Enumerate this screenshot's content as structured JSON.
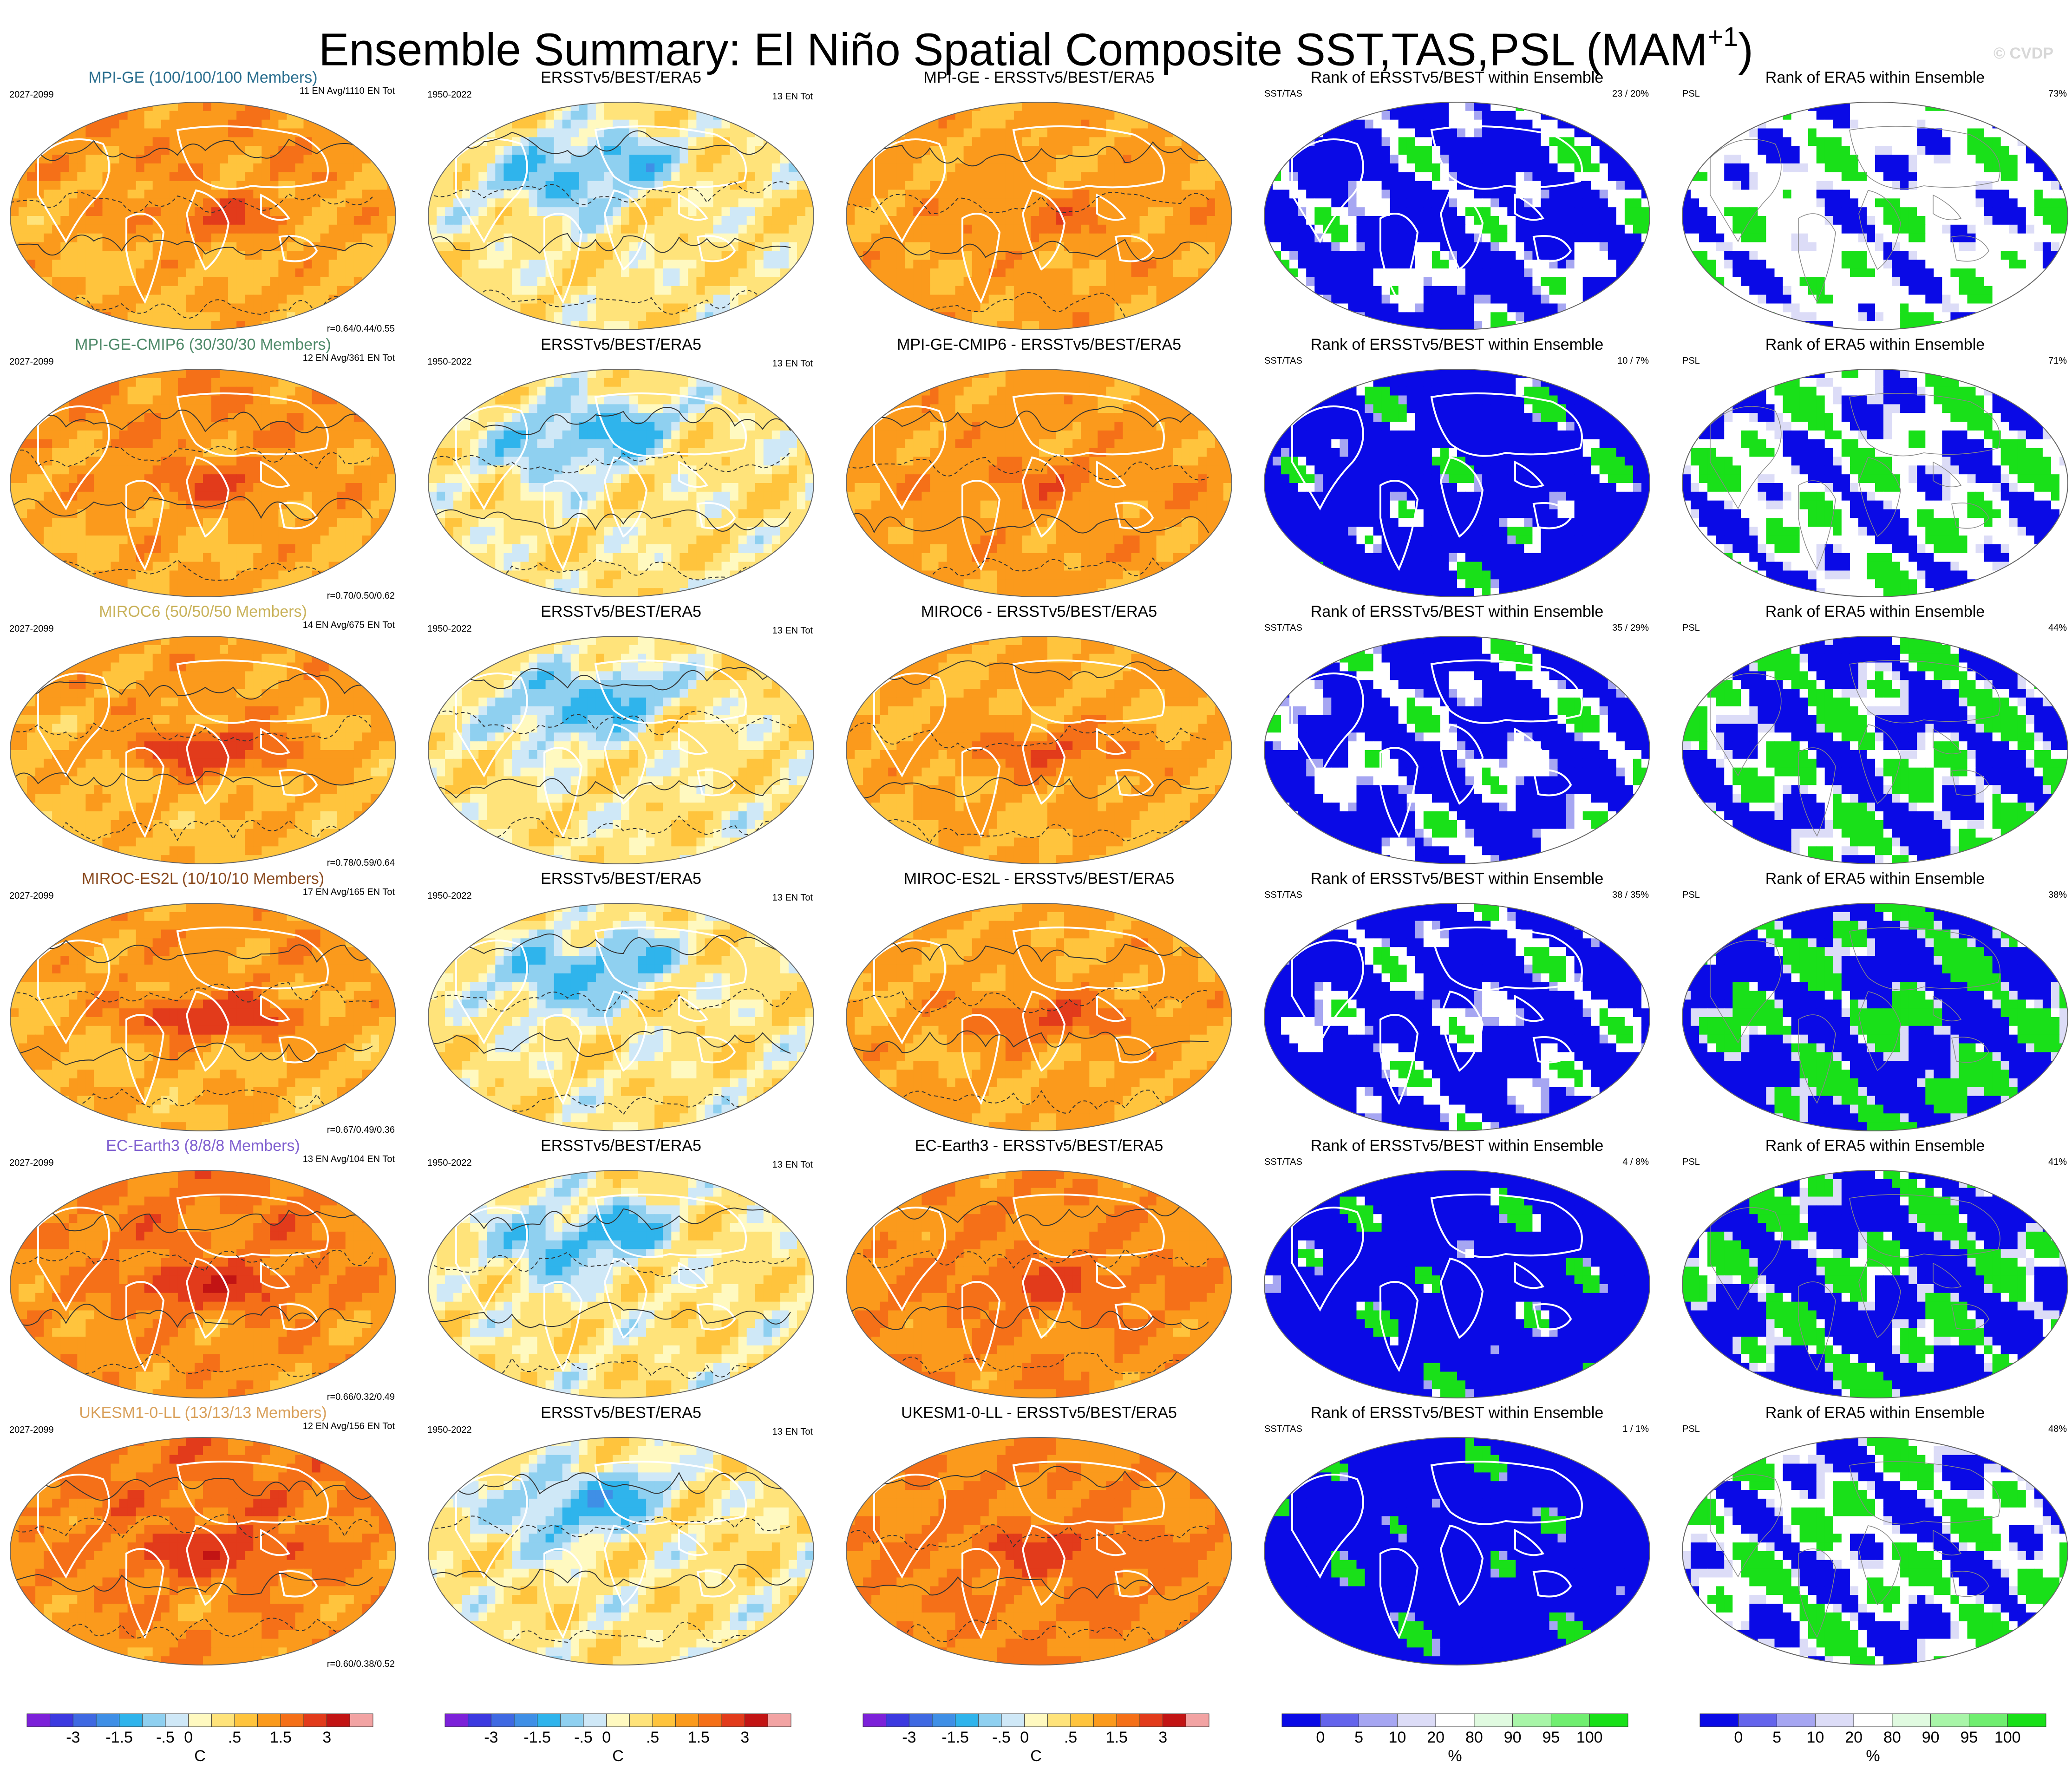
{
  "figure": {
    "title_main": "Ensemble Summary: El Niño Spatial Composite SST,TAS,PSL (MAM",
    "title_sup": "+1",
    "title_close": ")",
    "watermark": "© CVDP"
  },
  "colors": {
    "temp_scale": [
      "#7c21d9",
      "#3c39e0",
      "#3f69e2",
      "#3f8fe6",
      "#2fb4ec",
      "#8fd0f0",
      "#cfe8f7",
      "#fff9c0",
      "#ffe37a",
      "#ffc43d",
      "#fb9a1c",
      "#f57018",
      "#e23b1b",
      "#c21414",
      "#f2a3a3"
    ],
    "rank_scale": [
      "#0a0ae6",
      "#6464ec",
      "#a6a6f2",
      "#dcdcf7",
      "#ffffff",
      "#e0fae0",
      "#a8f5a8",
      "#70ee70",
      "#19e019"
    ],
    "land_outline": "#ffffff",
    "contour": "#333333"
  },
  "rows": [
    {
      "model": "MPI-GE (100/100/100 Members)",
      "model_color": "#2b6f8f",
      "period": "2027-2099",
      "ens_note": "11 EN Avg/1110 EN Tot",
      "corr": "r=0.64/0.44/0.55",
      "obs_title": "ERSSTv5/BEST/ERA5",
      "obs_period": "1950-2022",
      "obs_note": "13 EN Tot",
      "diff_title": "MPI-GE - ERSSTv5/BEST/ERA5",
      "rank1_title": "Rank of ERSSTv5/BEST within Ensemble",
      "rank1_var": "SST/TAS",
      "rank1_stat": "23 /  20%",
      "rank2_title": "Rank of ERA5 within Ensemble",
      "rank2_var": "PSL",
      "rank2_stat": "73%",
      "warm": 0.62,
      "enso": 0.45,
      "rank1_blue": 0.62,
      "rank2_blue": 0.2,
      "rank2_green": 0.15
    },
    {
      "model": "MPI-GE-CMIP6 (30/30/30 Members)",
      "model_color": "#4f8a6a",
      "period": "2027-2099",
      "ens_note": "12 EN Avg/361 EN Tot",
      "corr": "r=0.70/0.50/0.62",
      "obs_title": "ERSSTv5/BEST/ERA5",
      "obs_period": "1950-2022",
      "obs_note": "13 EN Tot",
      "diff_title": "MPI-GE-CMIP6 - ERSSTv5/BEST/ERA5",
      "rank1_title": "Rank of ERSSTv5/BEST within Ensemble",
      "rank1_var": "SST/TAS",
      "rank1_stat": "10 /   7%",
      "rank2_title": "Rank of ERA5 within Ensemble",
      "rank2_var": "PSL",
      "rank2_stat": "71%",
      "warm": 0.66,
      "enso": 0.45,
      "rank1_blue": 0.82,
      "rank2_blue": 0.3,
      "rank2_green": 0.25
    },
    {
      "model": "MIROC6 (50/50/50 Members)",
      "model_color": "#c9b25a",
      "period": "2027-2099",
      "ens_note": "14 EN Avg/675 EN Tot",
      "corr": "r=0.78/0.59/0.64",
      "obs_title": "ERSSTv5/BEST/ERA5",
      "obs_period": "1950-2022",
      "obs_note": "13 EN Tot",
      "diff_title": "MIROC6 - ERSSTv5/BEST/ERA5",
      "rank1_title": "Rank of ERSSTv5/BEST within Ensemble",
      "rank1_var": "SST/TAS",
      "rank1_stat": "35 /  29%",
      "rank2_title": "Rank of ERA5 within Ensemble",
      "rank2_var": "PSL",
      "rank2_stat": "44%",
      "warm": 0.55,
      "enso": 0.75,
      "rank1_blue": 0.6,
      "rank2_blue": 0.45,
      "rank2_green": 0.3
    },
    {
      "model": "MIROC-ES2L (10/10/10 Members)",
      "model_color": "#8a4a1f",
      "period": "2027-2099",
      "ens_note": "17 EN Avg/165 EN Tot",
      "corr": "r=0.67/0.49/0.36",
      "obs_title": "ERSSTv5/BEST/ERA5",
      "obs_period": "1950-2022",
      "obs_note": "13 EN Tot",
      "diff_title": "MIROC-ES2L - ERSSTv5/BEST/ERA5",
      "rank1_title": "Rank of ERSSTv5/BEST within Ensemble",
      "rank1_var": "SST/TAS",
      "rank1_stat": "38 /  35%",
      "rank2_title": "Rank of ERA5 within Ensemble",
      "rank2_var": "PSL",
      "rank2_stat": "38%",
      "warm": 0.58,
      "enso": 0.8,
      "rank1_blue": 0.65,
      "rank2_blue": 0.55,
      "rank2_green": 0.35
    },
    {
      "model": "EC-Earth3 (8/8/8 Members)",
      "model_color": "#8060d0",
      "period": "2027-2099",
      "ens_note": "13 EN Avg/104 EN Tot",
      "corr": "r=0.66/0.32/0.49",
      "obs_title": "ERSSTv5/BEST/ERA5",
      "obs_period": "1950-2022",
      "obs_note": "13 EN Tot",
      "diff_title": "EC-Earth3 - ERSSTv5/BEST/ERA5",
      "rank1_title": "Rank of ERSSTv5/BEST within Ensemble",
      "rank1_var": "SST/TAS",
      "rank1_stat": "4 /   8%",
      "rank2_title": "Rank of ERA5 within Ensemble",
      "rank2_var": "PSL",
      "rank2_stat": "41%",
      "warm": 0.8,
      "enso": 0.65,
      "rank1_blue": 0.88,
      "rank2_blue": 0.55,
      "rank2_green": 0.3
    },
    {
      "model": "UKESM1-0-LL (13/13/13 Members)",
      "model_color": "#d9a05b",
      "period": "2027-2099",
      "ens_note": "12 EN Avg/156 EN Tot",
      "corr": "r=0.60/0.38/0.52",
      "obs_title": "ERSSTv5/BEST/ERA5",
      "obs_period": "1950-2022",
      "obs_note": "13 EN Tot",
      "diff_title": "UKESM1-0-LL - ERSSTv5/BEST/ERA5",
      "rank1_title": "Rank of ERSSTv5/BEST within Ensemble",
      "rank1_var": "SST/TAS",
      "rank1_stat": "1 /   1%",
      "rank2_title": "Rank of ERA5 within Ensemble",
      "rank2_var": "PSL",
      "rank2_stat": "48%",
      "warm": 0.85,
      "enso": 0.6,
      "rank1_blue": 0.95,
      "rank2_blue": 0.35,
      "rank2_green": 0.3
    }
  ],
  "colorbars": {
    "temp": {
      "ticks": [
        "-3",
        "-1.5",
        "-.5",
        "0",
        ".5",
        "1.5",
        "3"
      ],
      "unit": "C"
    },
    "rank": {
      "ticks": [
        "0",
        "5",
        "10",
        "20",
        "80",
        "90",
        "95",
        "100"
      ],
      "unit": "%"
    }
  },
  "chart_data": {
    "type": "heatmap",
    "title": "Ensemble Summary: El Niño Spatial Composite SST,TAS,PSL (MAM+1)",
    "panels_per_row": [
      "model composite",
      "ERSSTv5/BEST/ERA5",
      "model - obs difference",
      "Rank of ERSSTv5/BEST within Ensemble",
      "Rank of ERA5 within Ensemble"
    ],
    "temp_levels": [
      -3,
      -1.5,
      -0.5,
      0,
      0.5,
      1.5,
      3
    ],
    "rank_levels": [
      0,
      5,
      10,
      20,
      80,
      90,
      95,
      100
    ],
    "models": [
      "MPI-GE",
      "MPI-GE-CMIP6",
      "MIROC6",
      "MIROC-ES2L",
      "EC-Earth3",
      "UKESM1-0-LL"
    ],
    "pattern_correlations": [
      "r=0.64/0.44/0.55",
      "r=0.70/0.50/0.62",
      "r=0.78/0.59/0.64",
      "r=0.67/0.49/0.36",
      "r=0.66/0.32/0.49",
      "r=0.60/0.38/0.52"
    ],
    "rank_sst_tas": [
      "23 / 20%",
      "10 / 7%",
      "35 / 29%",
      "38 / 35%",
      "4 / 8%",
      "1 / 1%"
    ],
    "rank_psl": [
      "73%",
      "71%",
      "44%",
      "38%",
      "41%",
      "48%"
    ]
  }
}
